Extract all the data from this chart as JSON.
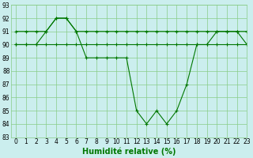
{
  "title": "",
  "xlabel": "Humidité relative (%)",
  "ylabel": "",
  "background_color": "#cbeeee",
  "grid_color": "#88cc88",
  "line_color": "#007700",
  "ylim": [
    83,
    93
  ],
  "xlim": [
    -0.5,
    23
  ],
  "yticks": [
    83,
    84,
    85,
    86,
    87,
    88,
    89,
    90,
    91,
    92,
    93
  ],
  "xticks": [
    0,
    1,
    2,
    3,
    4,
    5,
    6,
    7,
    8,
    9,
    10,
    11,
    12,
    13,
    14,
    15,
    16,
    17,
    18,
    19,
    20,
    21,
    22,
    23
  ],
  "series": [
    [
      91,
      91,
      91,
      91,
      92,
      92,
      91,
      91,
      91,
      91,
      91,
      91,
      91,
      91,
      91,
      91,
      91,
      91,
      91,
      91,
      91,
      91,
      91,
      91
    ],
    [
      90,
      90,
      90,
      90,
      90,
      90,
      90,
      90,
      90,
      90,
      90,
      90,
      90,
      90,
      90,
      90,
      90,
      90,
      90,
      90,
      90,
      90,
      90,
      90
    ],
    [
      90,
      90,
      90,
      91,
      92,
      92,
      91,
      89,
      89,
      89,
      89,
      89,
      85,
      84,
      85,
      84,
      85,
      87,
      90,
      90,
      91,
      91,
      91,
      90
    ]
  ],
  "figsize": [
    3.2,
    2.0
  ],
  "dpi": 100
}
